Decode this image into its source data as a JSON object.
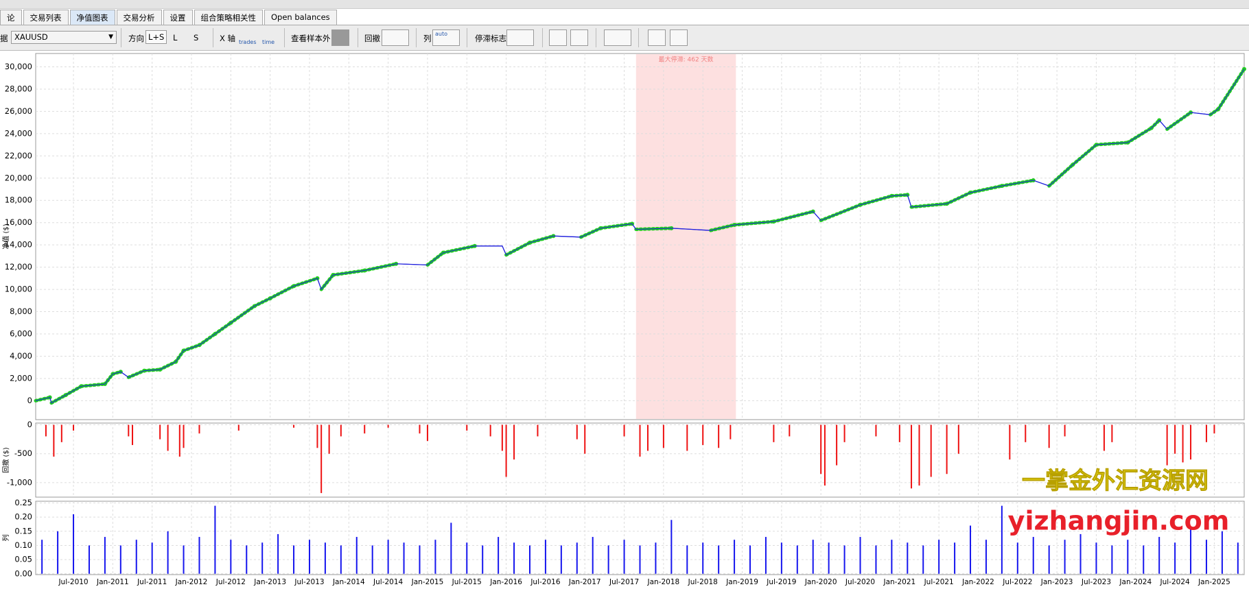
{
  "tabs": [
    "论",
    "交易列表",
    "净值图表",
    "交易分析",
    "设置",
    "组合策略相关性",
    "Open balances"
  ],
  "toolbar": {
    "symbol_label": "据",
    "symbol": "XAUUSD",
    "direction_label": "方向",
    "direction_options": [
      "L+S",
      "L",
      "S"
    ],
    "xaxis_label": "X 轴",
    "xaxis_options": [
      "trades",
      "time"
    ],
    "oos_label": "查看样本外",
    "drawdown_label": "回撤",
    "column_label": "列",
    "column_option": "auto",
    "stagnation_label": "停滞标志"
  },
  "chart_data": [
    {
      "type": "line",
      "y_label": "净值 ($)",
      "color": "#2020dd",
      "marker_color": "#22cc22",
      "grid": true,
      "xlim": [
        2010.02,
        2025.38
      ],
      "ylim": [
        -1700,
        31200
      ],
      "yticks": [
        0,
        {
          "value": 2000,
          "label": "2,000"
        },
        {
          "value": 4000,
          "label": "4,000"
        },
        {
          "value": 6000,
          "label": "6,000"
        },
        {
          "value": 8000,
          "label": "8,000"
        },
        {
          "value": 10000,
          "label": "10,000"
        },
        {
          "value": 12000,
          "label": "12,000"
        },
        {
          "value": 14000,
          "label": "14,000"
        },
        {
          "value": 16000,
          "label": "16,000"
        },
        {
          "value": 18000,
          "label": "18,000"
        },
        {
          "value": 20000,
          "label": "20,000"
        },
        {
          "value": 22000,
          "label": "22,000"
        },
        {
          "value": 24000,
          "label": "24,000"
        },
        {
          "value": 26000,
          "label": "26,000"
        },
        {
          "value": 28000,
          "label": "28,000"
        },
        {
          "value": 30000,
          "label": "30,000"
        }
      ],
      "x": [
        2010.02,
        2010.2,
        2010.22,
        2010.4,
        2010.6,
        2010.9,
        2011.0,
        2011.1,
        2011.2,
        2011.4,
        2011.6,
        2011.8,
        2011.9,
        2012.1,
        2012.3,
        2012.5,
        2012.8,
        2013.0,
        2013.3,
        2013.6,
        2013.65,
        2013.8,
        2014.2,
        2014.6,
        2015.0,
        2015.2,
        2015.6,
        2015.95,
        2016.0,
        2016.3,
        2016.6,
        2016.95,
        2017.2,
        2017.6,
        2017.65,
        2018.1,
        2018.6,
        2018.9,
        2019.4,
        2019.9,
        2020.0,
        2020.5,
        2020.9,
        2021.1,
        2021.15,
        2021.6,
        2021.9,
        2022.3,
        2022.7,
        2022.9,
        2023.2,
        2023.5,
        2023.9,
        2024.2,
        2024.3,
        2024.4,
        2024.7,
        2024.95,
        2025.05,
        2025.38
      ],
      "values": [
        0,
        300,
        -200,
        500,
        1300,
        1500,
        2400,
        2600,
        2100,
        2700,
        2800,
        3500,
        4500,
        5000,
        6000,
        7000,
        8500,
        9200,
        10300,
        11000,
        10000,
        11300,
        11700,
        12300,
        12200,
        13300,
        13900,
        13900,
        13100,
        14200,
        14800,
        14700,
        15500,
        15900,
        15400,
        15500,
        15300,
        15800,
        16100,
        17000,
        16200,
        17600,
        18400,
        18500,
        17400,
        17700,
        18700,
        19300,
        19800,
        19300,
        21200,
        23000,
        23200,
        24500,
        25200,
        24400,
        25900,
        25700,
        26200,
        29800
      ],
      "stagnation": {
        "from": 2017.65,
        "to": 2018.92,
        "label": "最大停滞: 462 天数",
        "color": "#fde0e0"
      }
    },
    {
      "type": "bar",
      "y_label": "回撤 ($)",
      "color": "#ee1111",
      "grid": true,
      "xlim": [
        2010.02,
        2025.38
      ],
      "ylim": [
        -1250,
        30
      ],
      "yticks": [
        0,
        -500,
        {
          "value": -1000,
          "label": "-1,000"
        }
      ],
      "x": [
        2010.15,
        2010.25,
        2010.35,
        2010.5,
        2011.2,
        2011.25,
        2011.6,
        2011.7,
        2011.85,
        2011.9,
        2012.1,
        2012.6,
        2013.3,
        2013.6,
        2013.65,
        2013.75,
        2013.9,
        2014.2,
        2014.5,
        2014.9,
        2015.0,
        2015.5,
        2015.8,
        2015.95,
        2016.0,
        2016.1,
        2016.4,
        2016.9,
        2017.0,
        2017.5,
        2017.7,
        2017.8,
        2018.0,
        2018.3,
        2018.5,
        2018.7,
        2018.85,
        2019.4,
        2019.6,
        2020.0,
        2020.05,
        2020.2,
        2020.3,
        2020.7,
        2021.0,
        2021.15,
        2021.25,
        2021.4,
        2021.6,
        2021.75,
        2022.4,
        2022.6,
        2022.9,
        2023.1,
        2023.6,
        2023.7,
        2024.4,
        2024.5,
        2024.6,
        2024.7,
        2024.9,
        2025.0
      ],
      "values": [
        -200,
        -550,
        -300,
        -100,
        -200,
        -350,
        -250,
        -450,
        -550,
        -400,
        -150,
        -100,
        -50,
        -400,
        -1180,
        -500,
        -200,
        -150,
        -50,
        -150,
        -280,
        -100,
        -200,
        -450,
        -900,
        -600,
        -200,
        -250,
        -500,
        -200,
        -550,
        -450,
        -400,
        -450,
        -350,
        -400,
        -250,
        -300,
        -200,
        -850,
        -1050,
        -700,
        -300,
        -200,
        -300,
        -1100,
        -1050,
        -900,
        -850,
        -500,
        -600,
        -300,
        -400,
        -200,
        -450,
        -300,
        -700,
        -500,
        -650,
        -600,
        -300,
        -150
      ]
    },
    {
      "type": "bar",
      "y_label": "列",
      "color": "#1515ee",
      "grid": true,
      "xlim": [
        2010.02,
        2025.38
      ],
      "ylim": [
        -0.003,
        0.256
      ],
      "yticks": [
        {
          "value": 0,
          "label": "0.00"
        },
        {
          "value": 0.05,
          "label": "0.05"
        },
        {
          "value": 0.1,
          "label": "0.10"
        },
        {
          "value": 0.15,
          "label": "0.15"
        },
        {
          "value": 0.2,
          "label": "0.20"
        },
        {
          "value": 0.25,
          "label": "0.25"
        }
      ],
      "xticks": [
        {
          "value": 2010.5,
          "label": "Jul-2010"
        },
        {
          "value": 2011.0,
          "label": "Jan-2011"
        },
        {
          "value": 2011.5,
          "label": "Jul-2011"
        },
        {
          "value": 2012.0,
          "label": "Jan-2012"
        },
        {
          "value": 2012.5,
          "label": "Jul-2012"
        },
        {
          "value": 2013.0,
          "label": "Jan-2013"
        },
        {
          "value": 2013.5,
          "label": "Jul-2013"
        },
        {
          "value": 2014.0,
          "label": "Jan-2014"
        },
        {
          "value": 2014.5,
          "label": "Jul-2014"
        },
        {
          "value": 2015.0,
          "label": "Jan-2015"
        },
        {
          "value": 2015.5,
          "label": "Jul-2015"
        },
        {
          "value": 2016.0,
          "label": "Jan-2016"
        },
        {
          "value": 2016.5,
          "label": "Jul-2016"
        },
        {
          "value": 2017.0,
          "label": "Jan-2017"
        },
        {
          "value": 2017.5,
          "label": "Jul-2017"
        },
        {
          "value": 2018.0,
          "label": "Jan-2018"
        },
        {
          "value": 2018.5,
          "label": "Jul-2018"
        },
        {
          "value": 2019.0,
          "label": "Jan-2019"
        },
        {
          "value": 2019.5,
          "label": "Jul-2019"
        },
        {
          "value": 2020.0,
          "label": "Jan-2020"
        },
        {
          "value": 2020.5,
          "label": "Jul-2020"
        },
        {
          "value": 2021.0,
          "label": "Jan-2021"
        },
        {
          "value": 2021.5,
          "label": "Jul-2021"
        },
        {
          "value": 2022.0,
          "label": "Jan-2022"
        },
        {
          "value": 2022.5,
          "label": "Jul-2022"
        },
        {
          "value": 2023.0,
          "label": "Jan-2023"
        },
        {
          "value": 2023.5,
          "label": "Jul-2023"
        },
        {
          "value": 2024.0,
          "label": "Jan-2024"
        },
        {
          "value": 2024.5,
          "label": "Jul-2024"
        },
        {
          "value": 2025.0,
          "label": "Jan-2025"
        }
      ],
      "x": [
        2010.1,
        2010.3,
        2010.5,
        2010.7,
        2010.9,
        2011.1,
        2011.3,
        2011.5,
        2011.7,
        2011.9,
        2012.1,
        2012.3,
        2012.5,
        2012.7,
        2012.9,
        2013.1,
        2013.3,
        2013.5,
        2013.7,
        2013.9,
        2014.1,
        2014.3,
        2014.5,
        2014.7,
        2014.9,
        2015.1,
        2015.3,
        2015.5,
        2015.7,
        2015.9,
        2016.1,
        2016.3,
        2016.5,
        2016.7,
        2016.9,
        2017.1,
        2017.3,
        2017.5,
        2017.7,
        2017.9,
        2018.1,
        2018.3,
        2018.5,
        2018.7,
        2018.9,
        2019.1,
        2019.3,
        2019.5,
        2019.7,
        2019.9,
        2020.1,
        2020.3,
        2020.5,
        2020.7,
        2020.9,
        2021.1,
        2021.3,
        2021.5,
        2021.7,
        2021.9,
        2022.1,
        2022.3,
        2022.5,
        2022.7,
        2022.9,
        2023.1,
        2023.3,
        2023.5,
        2023.7,
        2023.9,
        2024.1,
        2024.3,
        2024.5,
        2024.7,
        2024.9,
        2025.1,
        2025.3
      ],
      "values": [
        0.12,
        0.15,
        0.21,
        0.1,
        0.13,
        0.1,
        0.12,
        0.11,
        0.15,
        0.1,
        0.13,
        0.24,
        0.12,
        0.1,
        0.11,
        0.14,
        0.1,
        0.12,
        0.11,
        0.1,
        0.13,
        0.1,
        0.12,
        0.11,
        0.1,
        0.12,
        0.18,
        0.11,
        0.1,
        0.13,
        0.11,
        0.1,
        0.12,
        0.1,
        0.11,
        0.13,
        0.1,
        0.12,
        0.1,
        0.11,
        0.19,
        0.1,
        0.11,
        0.1,
        0.12,
        0.1,
        0.13,
        0.11,
        0.1,
        0.12,
        0.11,
        0.1,
        0.13,
        0.1,
        0.12,
        0.11,
        0.1,
        0.12,
        0.11,
        0.17,
        0.12,
        0.24,
        0.11,
        0.13,
        0.1,
        0.12,
        0.14,
        0.11,
        0.1,
        0.12,
        0.1,
        0.13,
        0.11,
        0.16,
        0.12,
        0.15,
        0.11
      ]
    }
  ],
  "watermark": {
    "name": "一掌金外汇资源网",
    "url": "yizhangjin.com"
  }
}
